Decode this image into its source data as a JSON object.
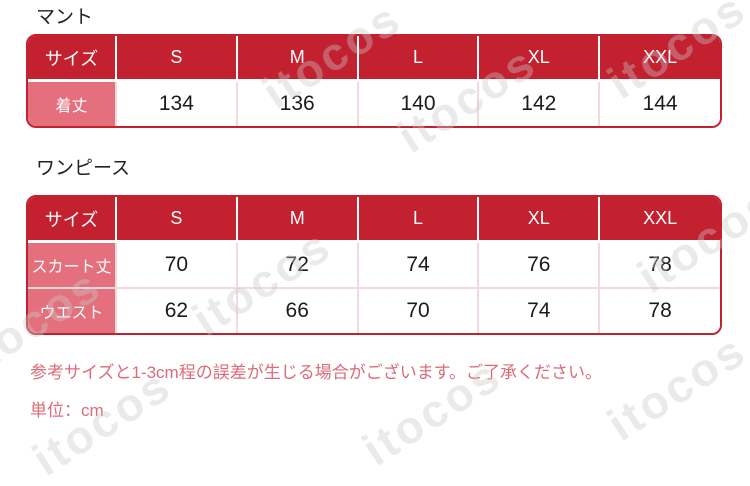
{
  "watermark": {
    "text": "itocos",
    "color": "#e9e9e9"
  },
  "colors": {
    "header_red": "#c32030",
    "row_label_pink": "#e4707d",
    "cell_separator_pink": "#f2dadc",
    "note_text_pink": "#dd6b78",
    "title_text": "#222222",
    "value_text": "#1b1b1b"
  },
  "tables": [
    {
      "title": "マント",
      "columns": [
        "サイズ",
        "S",
        "M",
        "L",
        "XL",
        "XXL"
      ],
      "rows": [
        {
          "label": "着丈",
          "values": [
            "134",
            "136",
            "140",
            "142",
            "144"
          ]
        }
      ]
    },
    {
      "title": "ワンピース",
      "columns": [
        "サイズ",
        "S",
        "M",
        "L",
        "XL",
        "XXL"
      ],
      "rows": [
        {
          "label": "スカート丈",
          "values": [
            "70",
            "72",
            "74",
            "76",
            "78"
          ]
        },
        {
          "label": "ウエスト",
          "values": [
            "62",
            "66",
            "70",
            "74",
            "78"
          ]
        }
      ]
    }
  ],
  "notes": [
    "参考サイズと1-3cm程の誤差が生じる場合がございます。ご了承ください。",
    "単位：cm"
  ]
}
